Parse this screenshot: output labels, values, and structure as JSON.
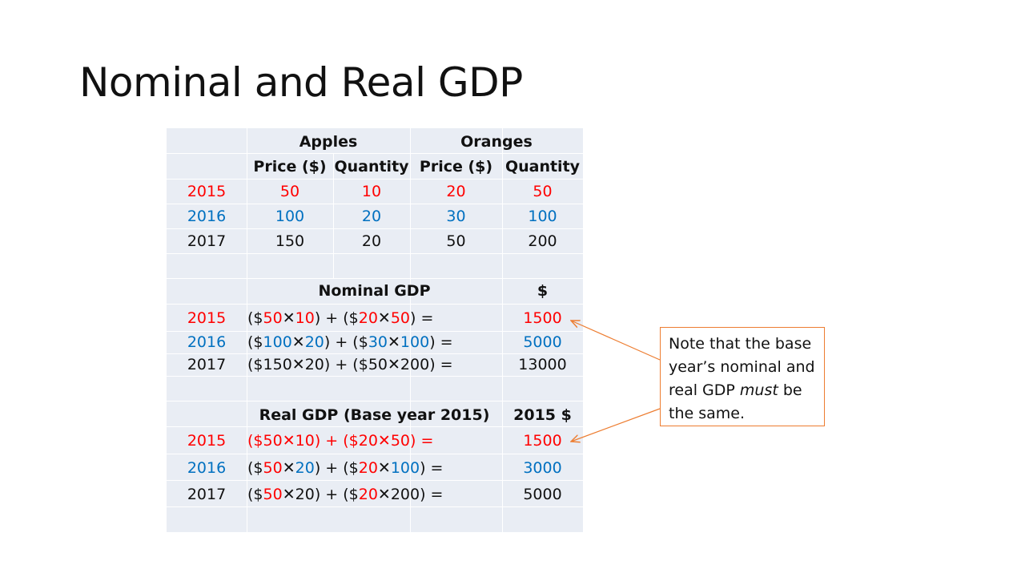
{
  "title": "Nominal and Real GDP",
  "headers": {
    "apples": "Apples",
    "oranges": "Oranges",
    "price": "Price ($)",
    "quantity": "Quantity"
  },
  "colors": {
    "2015": "#ff0000",
    "2016": "#0070c0",
    "2017": "#111111",
    "accent": "#ed7d31"
  },
  "data_rows": [
    {
      "year": "2015",
      "apple_price": "50",
      "apple_qty": "10",
      "orange_price": "20",
      "orange_qty": "50"
    },
    {
      "year": "2016",
      "apple_price": "100",
      "apple_qty": "20",
      "orange_price": "30",
      "orange_qty": "100"
    },
    {
      "year": "2017",
      "apple_price": "150",
      "apple_qty": "20",
      "orange_price": "50",
      "orange_qty": "200"
    }
  ],
  "nominal": {
    "header": "Nominal GDP",
    "unit": "$",
    "rows": [
      {
        "year": "2015",
        "a": "50",
        "b": "10",
        "c": "20",
        "d": "50",
        "result": "1500"
      },
      {
        "year": "2016",
        "a": "100",
        "b": "20",
        "c": "30",
        "d": "100",
        "result": "5000"
      },
      {
        "year": "2017",
        "a": "150",
        "b": "20",
        "c": "50",
        "d": "200",
        "result": "13000"
      }
    ]
  },
  "real": {
    "header": "Real GDP (Base year 2015)",
    "unit": "2015 $",
    "rows": [
      {
        "year": "2015",
        "a": "50",
        "b": "10",
        "c": "20",
        "d": "50",
        "result": "1500"
      },
      {
        "year": "2016",
        "a": "50",
        "b": "20",
        "c": "20",
        "d": "100",
        "result": "3000"
      },
      {
        "year": "2017",
        "a": "50",
        "b": "20",
        "c": "20",
        "d": "200",
        "result": "5000"
      }
    ]
  },
  "formula": {
    "open": "($",
    "times": "✕",
    "mid": ") + ($",
    "close": ") ="
  },
  "note": {
    "line1": "Note that the base",
    "line2": "year’s nominal and",
    "line3_pre": "real GDP ",
    "line3_em": "must",
    "line3_post": " be",
    "line4": "the same."
  }
}
